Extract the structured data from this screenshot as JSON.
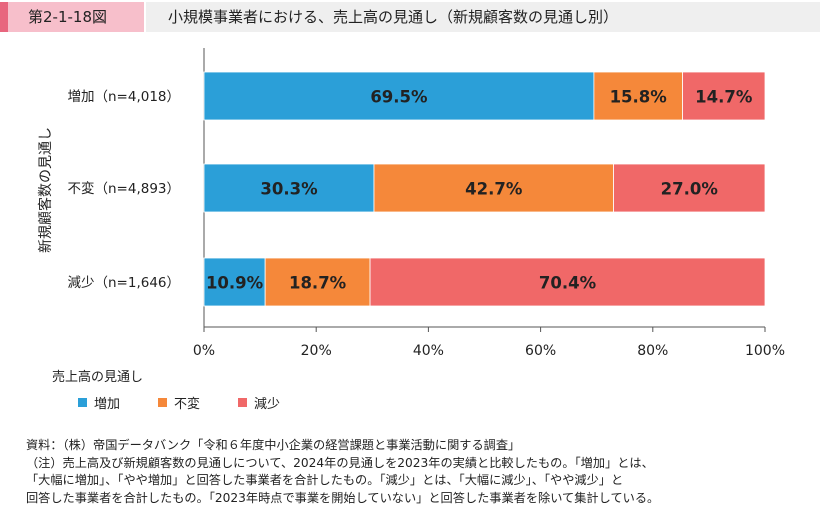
{
  "header": {
    "figure_number": "第2-1-18図",
    "title": "小規模事業者における、売上高の見通し（新規顧客数の見通し別）"
  },
  "chart_data": {
    "type": "bar",
    "orientation": "horizontal",
    "stacked": true,
    "ylabel": "新規顧客数の見通し",
    "categories": [
      "増加（n=4,018）",
      "不変（n=4,893）",
      "減少（n=1,646）"
    ],
    "series": [
      {
        "name": "増加",
        "values": [
          69.5,
          30.3,
          10.9
        ],
        "color": "#2b9fd8"
      },
      {
        "name": "不変",
        "values": [
          15.8,
          42.7,
          18.7
        ],
        "color": "#f5883a"
      },
      {
        "name": "減少",
        "values": [
          14.7,
          27.0,
          70.4
        ],
        "color": "#f06868"
      }
    ],
    "value_labels": [
      [
        "69.5%",
        "15.8%",
        "14.7%"
      ],
      [
        "30.3%",
        "42.7%",
        "27.0%"
      ],
      [
        "10.9%",
        "18.7%",
        "70.4%"
      ]
    ],
    "xlim": [
      0,
      100
    ],
    "xticks": [
      0,
      20,
      40,
      60,
      80,
      100
    ],
    "xtick_labels": [
      "0%",
      "20%",
      "40%",
      "60%",
      "80%",
      "100%"
    ],
    "legend_title": "売上高の見通し",
    "legend_placement": "bottom-left",
    "grid": false
  },
  "notes": [
    "資料：（株）帝国データバンク「令和６年度中小企業の経営課題と事業活動に関する調査」",
    "（注）売上高及び新規顧客数の見通しについて、2024年の見通しを2023年の実績と比較したもの。「増加」とは、",
    "「大幅に増加」、「やや増加」と回答した事業者を合計したもの。「減少」とは、「大幅に減少」、「やや減少」と",
    "回答した事業者を合計したもの。「2023年時点で事業を開始していない」と回答した事業者を除いて集計している。"
  ]
}
